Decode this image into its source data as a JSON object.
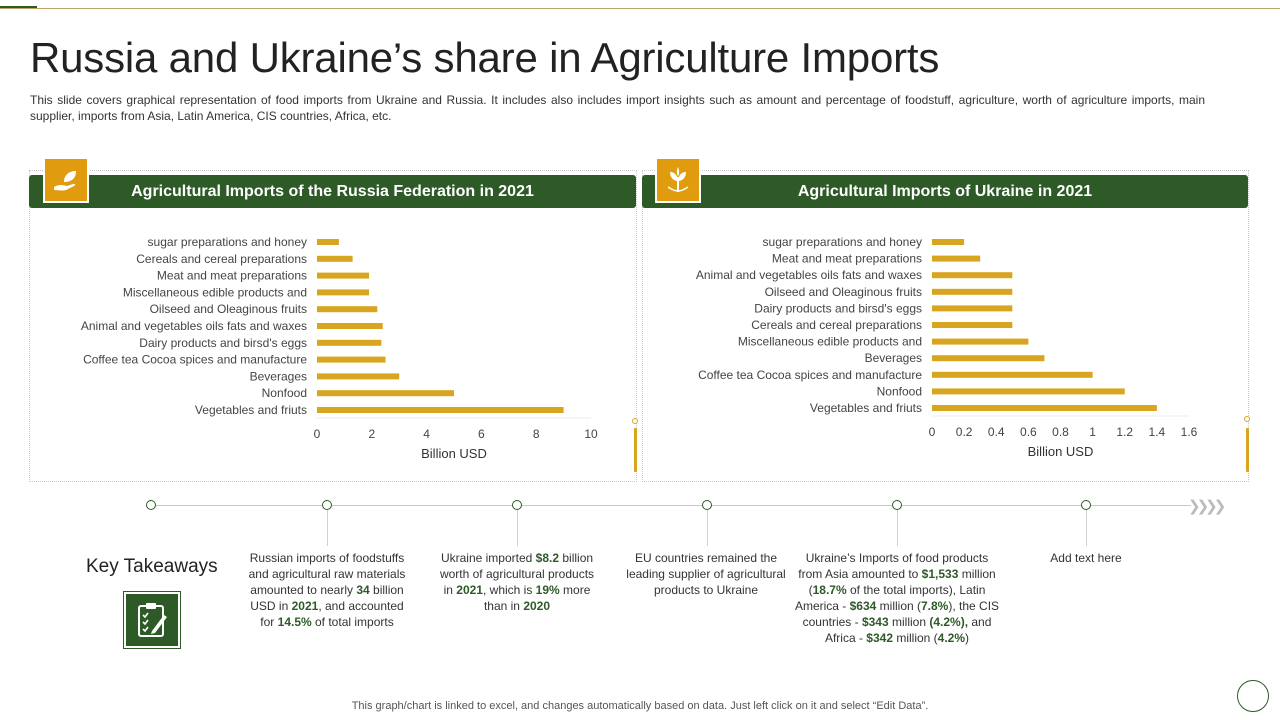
{
  "slide": {
    "title": "Russia and Ukraine’s share in Agriculture Imports",
    "description": "This slide covers graphical representation of food imports from Ukraine and Russia. It includes also includes import insights such as amount and percentage of foodstuff, agriculture, worth of agriculture imports, main supplier, imports from Asia, Latin America, CIS countries, Africa, etc.",
    "footer": "This graph/chart is linked to excel, and changes automatically based on data. Just left click on it and select “Edit Data”."
  },
  "colors": {
    "brand_green": "#2d5a27",
    "accent_orange": "#e09b0f",
    "bar": "#d9a521"
  },
  "icons": {
    "russia_badge": "hand-leaf-icon",
    "ukraine_badge": "plant-sprout-icon",
    "takeaways": "clipboard-checklist-icon"
  },
  "chart_data": [
    {
      "type": "bar",
      "orientation": "horizontal",
      "title": "Agricultural Imports of the Russia Federation in 2021",
      "xlabel": "Billion USD",
      "xlim": [
        0,
        10
      ],
      "xticks": [
        0,
        2,
        4,
        6,
        8,
        10
      ],
      "grid": false,
      "categories": [
        "sugar preparations and honey",
        "Cereals and cereal preparations",
        "Meat and meat preparations",
        "Miscellaneous edible products and",
        "Oilseed and Oleaginous fruits",
        "Animal and vegetables oils fats and waxes",
        "Dairy products and birsd's eggs",
        "Coffee tea Cocoa spices and manufacture",
        "Beverages",
        "Nonfood",
        "Vegetables and friuts"
      ],
      "values": [
        0.8,
        1.3,
        1.9,
        1.9,
        2.2,
        2.4,
        2.35,
        2.5,
        3.0,
        5.0,
        9.0
      ]
    },
    {
      "type": "bar",
      "orientation": "horizontal",
      "title": "Agricultural Imports of Ukraine in 2021",
      "xlabel": "Billion USD",
      "xlim": [
        0,
        1.6
      ],
      "xticks": [
        0,
        0.2,
        0.4,
        0.6,
        0.8,
        1,
        1.2,
        1.4,
        1.6
      ],
      "grid": false,
      "categories": [
        "sugar preparations and honey",
        "Meat and meat preparations",
        "Animal and vegetables oils fats and waxes",
        "Oilseed and Oleaginous fruits",
        "Dairy products and birsd's eggs",
        "Cereals and cereal preparations",
        "Miscellaneous edible products and",
        "Beverages",
        "Coffee tea Cocoa spices and manufacture",
        "Nonfood",
        "Vegetables and friuts"
      ],
      "values": [
        0.2,
        0.3,
        0.5,
        0.5,
        0.5,
        0.5,
        0.6,
        0.7,
        1.0,
        1.2,
        1.4
      ]
    }
  ],
  "takeaways": {
    "title": "Key Takeaways",
    "items": [
      [
        {
          "t": "Russian imports of foodstuffs and agricultural raw materials amounted to nearly "
        },
        {
          "t": "34",
          "b": true
        },
        {
          "t": " billion USD in "
        },
        {
          "t": "2021",
          "b": true
        },
        {
          "t": ", and accounted for "
        },
        {
          "t": "14.5%",
          "b": true
        },
        {
          "t": " of total imports"
        }
      ],
      [
        {
          "t": "Ukraine imported "
        },
        {
          "t": "$8.2",
          "b": true
        },
        {
          "t": " billion worth of agricultural products in "
        },
        {
          "t": "2021",
          "b": true
        },
        {
          "t": ", which is "
        },
        {
          "t": "19%",
          "b": true
        },
        {
          "t": " more than in "
        },
        {
          "t": "2020",
          "b": true
        }
      ],
      [
        {
          "t": "EU countries remained the leading supplier of agricultural products to Ukraine"
        }
      ],
      [
        {
          "t": "Ukraine’s Imports of food products from Asia amounted to "
        },
        {
          "t": "$1,533",
          "b": true
        },
        {
          "t": " million ("
        },
        {
          "t": "18.7%",
          "b": true
        },
        {
          "t": " of the total imports), Latin America - "
        },
        {
          "t": "$634",
          "b": true
        },
        {
          "t": " million ("
        },
        {
          "t": "7.8%",
          "b": true
        },
        {
          "t": "), the CIS countries - "
        },
        {
          "t": "$343",
          "b": true
        },
        {
          "t": " million "
        },
        {
          "t": "(4.2%),",
          "b": true
        },
        {
          "t": " and Africa - "
        },
        {
          "t": "$342",
          "b": true
        },
        {
          "t": " million ("
        },
        {
          "t": "4.2%",
          "b": true
        },
        {
          "t": ")"
        }
      ],
      [
        {
          "t": "Add text here"
        }
      ]
    ]
  }
}
